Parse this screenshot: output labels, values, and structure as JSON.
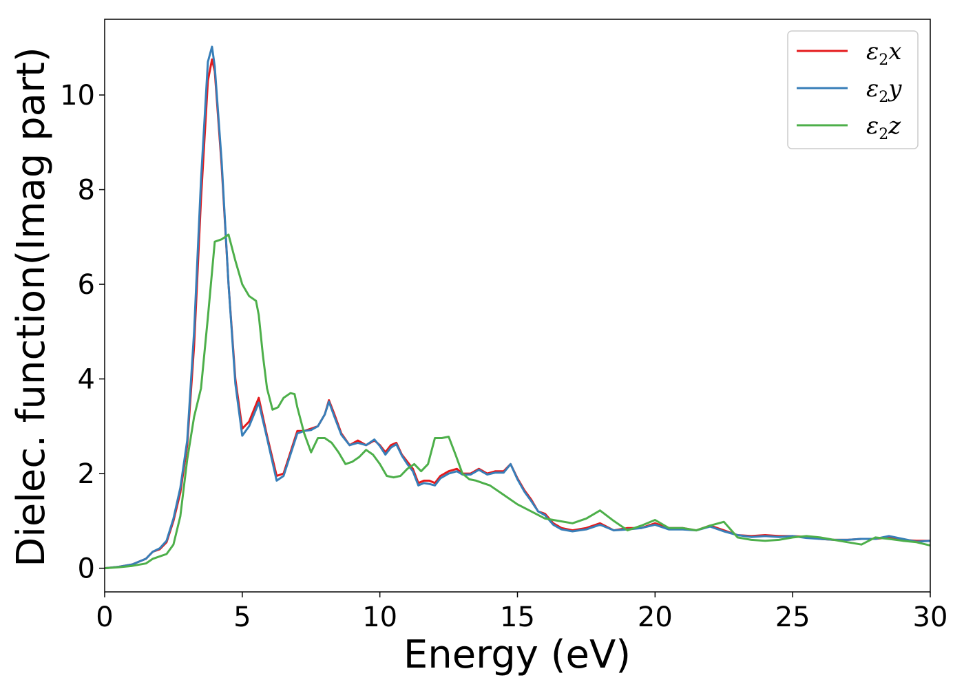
{
  "chart_data": {
    "type": "line",
    "title": "",
    "xlabel": "Energy (eV)",
    "ylabel": "Dielec. function(Imag part)",
    "xlim": [
      0,
      30
    ],
    "ylim": [
      -0.5,
      11.6
    ],
    "xticks": [
      0,
      5,
      10,
      15,
      20,
      25,
      30
    ],
    "yticks": [
      0,
      2,
      4,
      6,
      8,
      10
    ],
    "grid": false,
    "legend": "top-right",
    "series": [
      {
        "name": "ε₂x",
        "color": "#e41a1c",
        "x": [
          0,
          0.5,
          1.0,
          1.5,
          1.75,
          2.0,
          2.25,
          2.5,
          2.75,
          3.0,
          3.25,
          3.5,
          3.75,
          3.9,
          4.0,
          4.25,
          4.5,
          4.75,
          5.0,
          5.25,
          5.6,
          5.9,
          6.25,
          6.5,
          6.75,
          7.0,
          7.25,
          7.5,
          7.75,
          8.0,
          8.15,
          8.35,
          8.6,
          8.9,
          9.2,
          9.5,
          9.8,
          10.0,
          10.2,
          10.4,
          10.6,
          10.8,
          11.0,
          11.2,
          11.4,
          11.6,
          11.8,
          12.0,
          12.2,
          12.5,
          12.8,
          13.0,
          13.3,
          13.6,
          13.9,
          14.2,
          14.5,
          14.75,
          15.0,
          15.25,
          15.5,
          15.75,
          16.0,
          16.3,
          16.6,
          17.0,
          17.5,
          18.0,
          18.5,
          19.0,
          19.5,
          20.0,
          20.5,
          21.0,
          21.5,
          22.0,
          22.5,
          23.0,
          23.5,
          24.0,
          24.5,
          25.0,
          25.5,
          26.0,
          26.5,
          27.0,
          27.5,
          28.0,
          28.5,
          29.0,
          29.5,
          30.0
        ],
        "y": [
          0,
          0.03,
          0.08,
          0.2,
          0.35,
          0.4,
          0.55,
          1.0,
          1.6,
          2.6,
          4.7,
          7.8,
          10.3,
          10.75,
          10.5,
          8.5,
          6.0,
          4.0,
          2.95,
          3.1,
          3.6,
          2.8,
          1.95,
          2.0,
          2.45,
          2.9,
          2.9,
          2.95,
          3.0,
          3.25,
          3.55,
          3.25,
          2.85,
          2.6,
          2.7,
          2.6,
          2.7,
          2.6,
          2.45,
          2.6,
          2.65,
          2.4,
          2.25,
          2.1,
          1.8,
          1.85,
          1.85,
          1.8,
          1.95,
          2.05,
          2.1,
          2.0,
          2.0,
          2.1,
          2.0,
          2.05,
          2.05,
          2.2,
          1.9,
          1.65,
          1.45,
          1.2,
          1.15,
          0.95,
          0.85,
          0.8,
          0.85,
          0.95,
          0.8,
          0.85,
          0.85,
          0.95,
          0.85,
          0.85,
          0.8,
          0.9,
          0.8,
          0.7,
          0.68,
          0.7,
          0.68,
          0.68,
          0.66,
          0.62,
          0.6,
          0.6,
          0.62,
          0.62,
          0.65,
          0.6,
          0.58,
          0.58
        ]
      },
      {
        "name": "ε₂y",
        "color": "#377eb8",
        "x": [
          0,
          0.5,
          1.0,
          1.5,
          1.75,
          2.0,
          2.25,
          2.5,
          2.75,
          3.0,
          3.25,
          3.5,
          3.75,
          3.9,
          4.0,
          4.25,
          4.5,
          4.75,
          5.0,
          5.25,
          5.6,
          5.9,
          6.25,
          6.5,
          6.75,
          7.0,
          7.25,
          7.5,
          7.75,
          8.0,
          8.15,
          8.35,
          8.6,
          8.9,
          9.2,
          9.5,
          9.8,
          10.0,
          10.2,
          10.4,
          10.6,
          10.8,
          11.0,
          11.2,
          11.4,
          11.6,
          11.8,
          12.0,
          12.2,
          12.5,
          12.8,
          13.0,
          13.3,
          13.6,
          13.9,
          14.2,
          14.5,
          14.75,
          15.0,
          15.25,
          15.5,
          15.75,
          16.0,
          16.3,
          16.6,
          17.0,
          17.5,
          18.0,
          18.5,
          19.0,
          19.5,
          20.0,
          20.5,
          21.0,
          21.5,
          22.0,
          22.5,
          23.0,
          23.5,
          24.0,
          24.5,
          25.0,
          25.5,
          26.0,
          26.5,
          27.0,
          27.5,
          28.0,
          28.5,
          29.0,
          29.5,
          30.0
        ],
        "y": [
          0,
          0.03,
          0.08,
          0.2,
          0.35,
          0.42,
          0.58,
          1.05,
          1.7,
          2.7,
          5.0,
          8.2,
          10.7,
          11.02,
          10.6,
          8.6,
          6.0,
          3.9,
          2.8,
          3.0,
          3.5,
          2.75,
          1.85,
          1.95,
          2.4,
          2.85,
          2.9,
          2.92,
          3.0,
          3.25,
          3.52,
          3.2,
          2.82,
          2.6,
          2.65,
          2.6,
          2.72,
          2.58,
          2.4,
          2.55,
          2.62,
          2.38,
          2.2,
          2.05,
          1.75,
          1.8,
          1.78,
          1.75,
          1.9,
          2.0,
          2.05,
          1.98,
          1.98,
          2.08,
          1.98,
          2.02,
          2.02,
          2.2,
          1.88,
          1.62,
          1.42,
          1.2,
          1.12,
          0.92,
          0.82,
          0.78,
          0.82,
          0.92,
          0.8,
          0.82,
          0.85,
          0.92,
          0.82,
          0.82,
          0.8,
          0.88,
          0.78,
          0.7,
          0.66,
          0.68,
          0.66,
          0.68,
          0.64,
          0.62,
          0.6,
          0.6,
          0.62,
          0.62,
          0.68,
          0.62,
          0.56,
          0.58
        ]
      },
      {
        "name": "ε₂z",
        "color": "#4daf4a",
        "x": [
          0,
          0.5,
          1.0,
          1.5,
          1.75,
          2.0,
          2.25,
          2.5,
          2.75,
          3.0,
          3.25,
          3.5,
          3.75,
          4.0,
          4.25,
          4.5,
          4.75,
          5.0,
          5.25,
          5.5,
          5.6,
          5.75,
          5.9,
          6.1,
          6.3,
          6.5,
          6.75,
          6.9,
          7.0,
          7.25,
          7.5,
          7.75,
          8.0,
          8.25,
          8.5,
          8.75,
          9.0,
          9.25,
          9.5,
          9.75,
          10.0,
          10.25,
          10.5,
          10.75,
          11.0,
          11.25,
          11.5,
          11.75,
          12.0,
          12.25,
          12.5,
          12.75,
          13.0,
          13.25,
          13.5,
          13.75,
          14.0,
          14.5,
          15.0,
          15.5,
          16.0,
          16.5,
          17.0,
          17.5,
          18.0,
          18.5,
          19.0,
          19.5,
          20.0,
          20.5,
          21.0,
          21.5,
          22.0,
          22.5,
          23.0,
          23.5,
          24.0,
          24.5,
          25.0,
          25.5,
          26.0,
          26.5,
          27.0,
          27.5,
          28.0,
          28.5,
          29.0,
          29.5,
          30.0
        ],
        "y": [
          0,
          0.02,
          0.05,
          0.1,
          0.2,
          0.25,
          0.3,
          0.5,
          1.1,
          2.3,
          3.2,
          3.8,
          5.3,
          6.9,
          6.95,
          7.05,
          6.5,
          6.0,
          5.75,
          5.65,
          5.35,
          4.5,
          3.8,
          3.35,
          3.4,
          3.6,
          3.7,
          3.68,
          3.4,
          2.85,
          2.45,
          2.75,
          2.75,
          2.65,
          2.45,
          2.2,
          2.25,
          2.35,
          2.5,
          2.4,
          2.2,
          1.95,
          1.92,
          1.95,
          2.1,
          2.2,
          2.05,
          2.2,
          2.75,
          2.75,
          2.78,
          2.4,
          2.0,
          1.88,
          1.85,
          1.8,
          1.75,
          1.55,
          1.35,
          1.2,
          1.05,
          1.0,
          0.95,
          1.05,
          1.22,
          1.0,
          0.8,
          0.9,
          1.02,
          0.85,
          0.85,
          0.8,
          0.9,
          0.98,
          0.65,
          0.6,
          0.58,
          0.6,
          0.65,
          0.68,
          0.65,
          0.6,
          0.55,
          0.5,
          0.65,
          0.62,
          0.58,
          0.55,
          0.48
        ]
      }
    ]
  },
  "legend": {
    "items": [
      {
        "base": "ε",
        "sub": "2",
        "var": "x"
      },
      {
        "base": "ε",
        "sub": "2",
        "var": "y"
      },
      {
        "base": "ε",
        "sub": "2",
        "var": "z"
      }
    ]
  }
}
